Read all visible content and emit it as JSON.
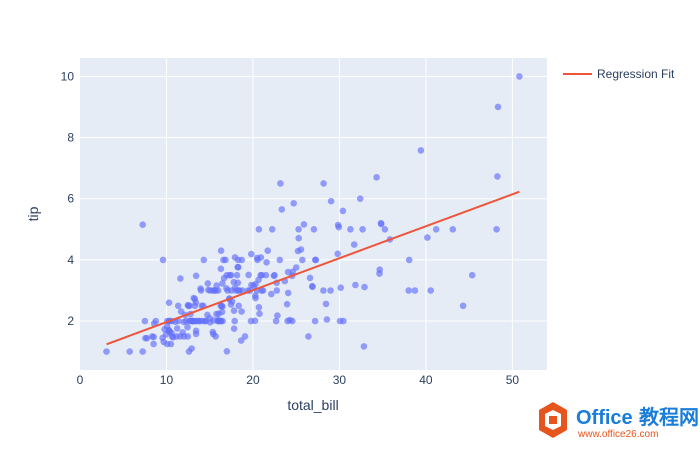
{
  "chart_data": {
    "type": "scatter",
    "xlabel": "total_bill",
    "ylabel": "tip",
    "xlim": [
      0,
      54
    ],
    "ylim": [
      0.4,
      10.6
    ],
    "x_ticks": [
      0,
      10,
      20,
      30,
      40,
      50
    ],
    "y_ticks": [
      2,
      4,
      6,
      8,
      10
    ],
    "grid": true,
    "legend_position": "top-right",
    "colors": {
      "points": "#636efa",
      "regression": "#ef553b",
      "plot_bg": "#e5ecf6",
      "grid": "#ffffff"
    },
    "series": [
      {
        "kind": "markers",
        "x": [
          16.99,
          10.34,
          21.01,
          23.68,
          24.59,
          25.29,
          8.77,
          26.88,
          15.04,
          14.78,
          10.27,
          35.26,
          15.42,
          18.43,
          14.83,
          21.58,
          10.33,
          16.29,
          16.97,
          20.65,
          17.92,
          20.29,
          15.77,
          39.42,
          19.82,
          17.81,
          13.37,
          12.69,
          21.7,
          19.65,
          9.55,
          18.35,
          15.06,
          20.69,
          17.78,
          24.06,
          16.31,
          16.93,
          18.69,
          31.27,
          16.04,
          17.46,
          13.94,
          9.68,
          30.4,
          18.29,
          22.23,
          32.4,
          28.55,
          18.04,
          12.54,
          10.29,
          34.81,
          9.94,
          25.56,
          19.49,
          38.01,
          26.41,
          11.24,
          48.27,
          20.29,
          13.81,
          11.02,
          18.29,
          17.59,
          20.08,
          16.45,
          3.07,
          20.23,
          15.01,
          12.02,
          17.07,
          26.86,
          25.28,
          14.73,
          10.51,
          17.92,
          27.2,
          22.76,
          17.29,
          19.44,
          16.66,
          10.07,
          32.68,
          15.98,
          34.83,
          13.03,
          18.28,
          24.71,
          21.16,
          28.97,
          22.49,
          5.75,
          16.32,
          22.75,
          40.17,
          27.28,
          12.03,
          21.01,
          12.46,
          11.35,
          15.38,
          44.3,
          22.42,
          20.92,
          15.36,
          20.49,
          25.21,
          18.24,
          14.31,
          14.0,
          7.25,
          38.07,
          23.95,
          25.71,
          17.31,
          29.93,
          10.65,
          12.43,
          24.08,
          11.69,
          13.42,
          14.26,
          15.95,
          12.48,
          29.8,
          8.52,
          14.52,
          11.38,
          22.82,
          19.08,
          20.27,
          11.17,
          12.26,
          18.26,
          8.51,
          10.33,
          14.15,
          16.0,
          13.16,
          17.47,
          34.3,
          41.19,
          27.05,
          16.43,
          8.35,
          18.64,
          11.87,
          9.78,
          7.51,
          14.07,
          13.13,
          17.26,
          24.55,
          19.77,
          29.85,
          48.17,
          25.0,
          13.39,
          16.49,
          21.5,
          12.66,
          16.21,
          13.81,
          17.51,
          24.52,
          20.76,
          31.71,
          10.59,
          10.63,
          50.81,
          15.81,
          7.25,
          31.85,
          16.82,
          32.9,
          17.89,
          14.48,
          9.6,
          34.63,
          34.65,
          23.33,
          45.35,
          23.17,
          40.55,
          20.69,
          20.9,
          30.46,
          18.15,
          23.1,
          15.69,
          19.81,
          28.44,
          15.48,
          16.58,
          7.56,
          10.34,
          43.11,
          13.0,
          13.51,
          18.71,
          12.74,
          13.0,
          16.4,
          20.53,
          16.47,
          26.59,
          38.73,
          24.27,
          12.76,
          30.06,
          25.89,
          48.33,
          13.27,
          28.17,
          12.9,
          28.15,
          11.59,
          7.74,
          30.14,
          12.16,
          13.42,
          8.58,
          15.98,
          13.42,
          16.27,
          10.09,
          20.45,
          13.28,
          22.12,
          24.01,
          15.69,
          11.61,
          10.77,
          15.53,
          10.07,
          12.6,
          32.83,
          35.83,
          29.03,
          27.18,
          22.67,
          17.82,
          18.78
        ],
        "y": [
          1.01,
          1.66,
          3.5,
          3.31,
          3.61,
          4.71,
          2.0,
          3.12,
          1.96,
          3.23,
          1.71,
          5.0,
          1.57,
          3.0,
          3.02,
          3.92,
          1.67,
          3.71,
          3.5,
          3.35,
          4.08,
          2.75,
          2.23,
          7.58,
          3.18,
          2.34,
          2.0,
          2.0,
          4.3,
          3.0,
          1.45,
          2.5,
          3.0,
          2.45,
          3.27,
          3.6,
          2.0,
          3.07,
          2.31,
          5.0,
          2.24,
          2.54,
          3.06,
          1.32,
          5.6,
          3.0,
          5.0,
          6.0,
          2.05,
          3.0,
          2.5,
          2.6,
          5.2,
          1.56,
          4.34,
          3.51,
          3.0,
          1.5,
          1.76,
          6.73,
          3.21,
          2.0,
          1.98,
          3.76,
          2.64,
          3.15,
          2.47,
          1.0,
          2.01,
          2.09,
          1.97,
          3.0,
          3.14,
          5.0,
          2.2,
          1.25,
          3.08,
          4.0,
          3.0,
          2.71,
          3.0,
          3.4,
          1.83,
          5.0,
          2.03,
          5.17,
          2.0,
          4.0,
          5.85,
          3.0,
          3.0,
          3.5,
          1.0,
          4.3,
          3.25,
          4.73,
          4.0,
          1.5,
          3.0,
          1.5,
          2.5,
          3.0,
          2.5,
          3.48,
          4.08,
          1.64,
          4.06,
          4.29,
          3.76,
          4.0,
          3.0,
          1.0,
          4.0,
          2.55,
          4.0,
          3.5,
          5.07,
          1.5,
          1.8,
          2.92,
          2.31,
          1.68,
          2.5,
          2.0,
          2.52,
          4.2,
          1.48,
          2.0,
          2.0,
          2.18,
          1.5,
          2.83,
          1.5,
          2.0,
          3.25,
          1.25,
          2.0,
          2.0,
          2.0,
          2.75,
          3.5,
          6.7,
          5.0,
          5.0,
          2.3,
          1.5,
          1.36,
          1.63,
          1.73,
          2.0,
          2.5,
          2.0,
          2.74,
          2.0,
          2.0,
          5.14,
          5.0,
          3.75,
          2.61,
          2.0,
          3.5,
          2.5,
          2.0,
          2.0,
          3.0,
          3.48,
          2.24,
          4.5,
          1.61,
          2.0,
          10.0,
          3.16,
          5.15,
          3.18,
          4.0,
          3.11,
          2.0,
          2.0,
          4.0,
          3.55,
          3.68,
          5.65,
          3.5,
          6.5,
          3.0,
          5.0,
          3.5,
          2.0,
          3.5,
          4.0,
          1.5,
          4.19,
          2.56,
          2.02,
          4.0,
          1.44,
          2.0,
          5.0,
          2.0,
          2.0,
          4.0,
          2.01,
          2.0,
          2.5,
          4.0,
          3.23,
          3.41,
          3.0,
          2.03,
          2.23,
          2.0,
          5.16,
          9.0,
          2.5,
          6.5,
          1.1,
          3.0,
          1.5,
          1.44,
          3.09,
          2.2,
          3.48,
          1.92,
          3.0,
          1.58,
          2.5,
          2.0,
          3.0,
          2.72,
          2.88,
          2.0,
          3.0,
          3.39,
          1.47,
          3.0,
          1.25,
          1.0,
          1.17,
          4.67,
          5.92,
          2.0,
          2.0,
          1.75,
          3.0
        ]
      },
      {
        "kind": "line",
        "name": "Regression Fit",
        "x": [
          3.07,
          50.81
        ],
        "y": [
          1.24,
          6.23
        ]
      }
    ]
  },
  "legend": {
    "entries": [
      "Regression Fit"
    ]
  },
  "watermark": {
    "brand": "Office",
    "brand_cn": "教程网",
    "url": "www.office26.com"
  }
}
